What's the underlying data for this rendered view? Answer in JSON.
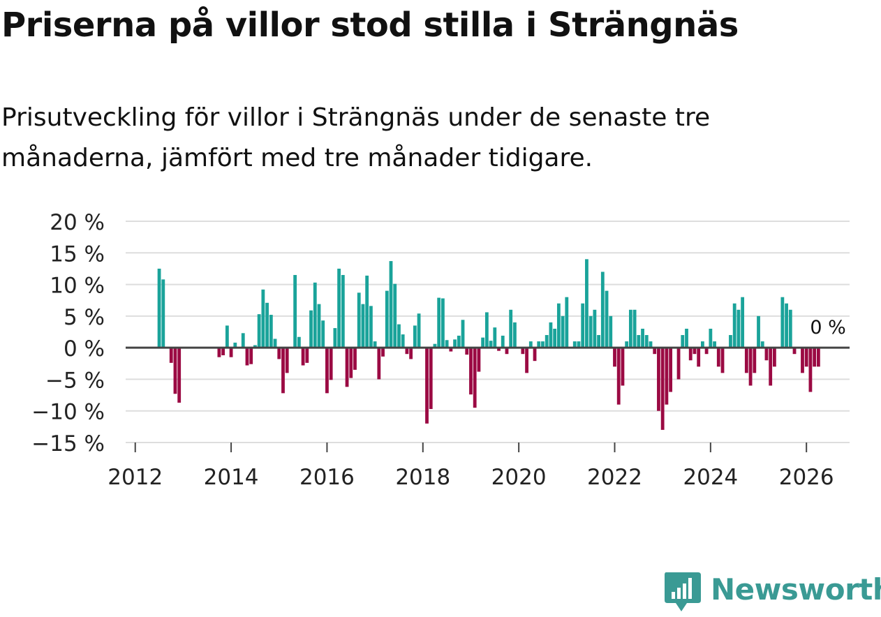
{
  "title": "Priserna på villor stod stilla i Strängnäs",
  "subtitle": "Prisutveckling för villor i Strängnäs under de senaste tre månaderna, jämfört med tre månader tidigare.",
  "brand": {
    "name": "Newsworthy",
    "color": "#3a9a94"
  },
  "colors": {
    "positive": "#1aa39a",
    "negative": "#9b0a43",
    "grid": "#dddddd",
    "zero_line": "#444444",
    "text": "#222222"
  },
  "chart_data": {
    "type": "bar",
    "title": "Priserna på villor stod stilla i Strängnäs",
    "xlabel": "",
    "ylabel": "",
    "ylim": [
      -15,
      20
    ],
    "xlim": [
      2011.8,
      2026.9
    ],
    "yticks": [
      20,
      15,
      10,
      5,
      0,
      -5,
      -10,
      -15
    ],
    "ytick_labels": [
      "20 %",
      "15 %",
      "10 %",
      "5 %",
      "0 %",
      "−5 %",
      "−10 %",
      "−15 %"
    ],
    "xticks": [
      2012,
      2014,
      2016,
      2018,
      2020,
      2022,
      2024,
      2026
    ],
    "xtick_labels": [
      "2012",
      "2014",
      "2016",
      "2018",
      "2020",
      "2022",
      "2024",
      "2026"
    ],
    "start": 2012.5,
    "step_months": 1,
    "values": [
      12.5,
      10.8,
      null,
      -2.4,
      -7.3,
      -8.7,
      null,
      null,
      null,
      null,
      null,
      null,
      null,
      null,
      null,
      -1.5,
      -1.2,
      3.5,
      -1.5,
      0.8,
      null,
      2.3,
      -2.8,
      -2.6,
      0.4,
      5.3,
      9.2,
      7.1,
      5.2,
      1.4,
      -1.8,
      -7.2,
      -4.0,
      null,
      11.5,
      1.7,
      -2.8,
      -2.4,
      5.9,
      10.3,
      6.9,
      4.3,
      -7.2,
      -5.1,
      3.1,
      12.5,
      11.5,
      -6.2,
      -4.8,
      -3.5,
      8.7,
      6.9,
      11.4,
      6.6,
      1.0,
      -5.0,
      -1.4,
      9.0,
      13.7,
      10.1,
      3.7,
      2.1,
      -1.0,
      -1.8,
      3.5,
      5.4,
      null,
      -12.0,
      -9.7,
      0.6,
      7.9,
      7.8,
      1.2,
      -0.6,
      1.3,
      1.9,
      4.4,
      -1.1,
      -7.4,
      -9.5,
      -3.8,
      1.6,
      5.6,
      1.1,
      3.2,
      -0.5,
      1.9,
      -1.0,
      6.0,
      4.0,
      null,
      -1.0,
      -4.0,
      1.0,
      -2.1,
      1.0,
      1.0,
      2.0,
      4.0,
      3.0,
      7.0,
      5.0,
      8.0,
      null,
      1.0,
      1.0,
      7.0,
      14.0,
      5.0,
      6.0,
      2.0,
      12.0,
      9.0,
      5.0,
      -3.0,
      -9.0,
      -6.0,
      1.0,
      6.0,
      6.0,
      2.0,
      3.0,
      2.0,
      1.0,
      -1.0,
      -10.0,
      -13.0,
      -9.0,
      -7.0,
      null,
      -5.0,
      2.0,
      3.0,
      -2.0,
      -1.0,
      -3.0,
      1.0,
      -1.0,
      3.0,
      1.0,
      -3.0,
      -4.0,
      null,
      2.0,
      7.0,
      6.0,
      8.0,
      -4.0,
      -6.0,
      -4.0,
      5.0,
      1.0,
      -2.0,
      -6.0,
      -3.0,
      null,
      8.0,
      7.0,
      6.0,
      -1.0,
      null,
      -4.0,
      -3.0,
      -7.0,
      -3.0,
      -3.0,
      0.0
    ],
    "annotation": {
      "label": "0 %",
      "target": "last"
    }
  }
}
